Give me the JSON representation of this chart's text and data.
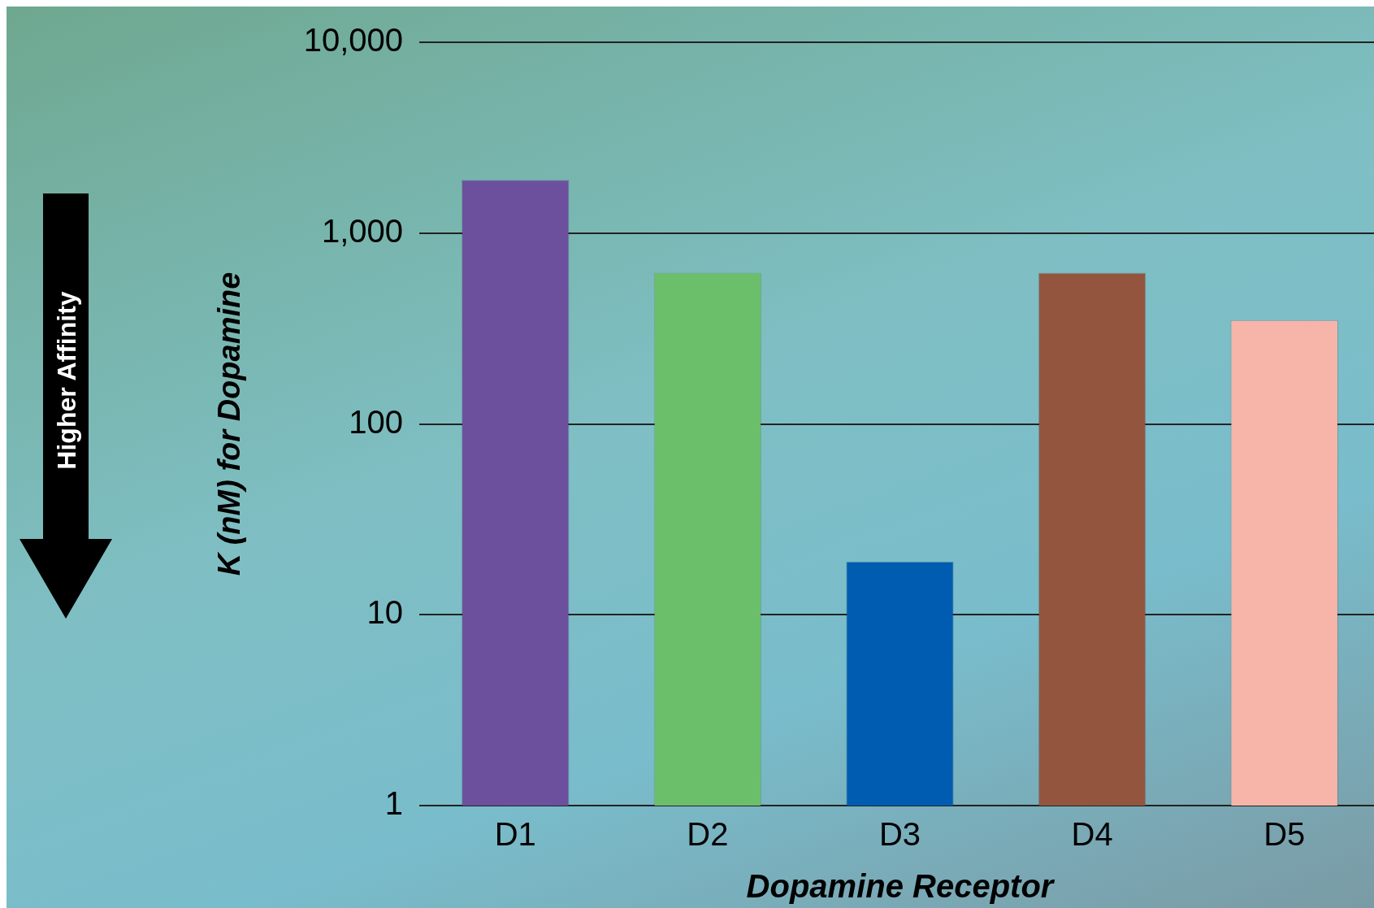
{
  "chart_data": {
    "type": "bar",
    "xlabel": "Dopamine Receptor",
    "ylabel": "K (nM) for Dopamine",
    "categories": [
      "D1",
      "D2",
      "D3",
      "D4",
      "D5"
    ],
    "values": [
      1900,
      620,
      19,
      620,
      350
    ],
    "colors": [
      "#6c509e",
      "#6bbf6a",
      "#005cb0",
      "#94553e",
      "#f7b4a8"
    ],
    "log": "y",
    "ylim": [
      1,
      10000
    ],
    "yticks": [
      1,
      10,
      100,
      {
        "value": 1000,
        "label": "1,000"
      },
      {
        "value": 10000,
        "label": "10,000"
      }
    ],
    "grid": "y",
    "legend": false,
    "annotations": [
      "Higher Affinity"
    ]
  }
}
